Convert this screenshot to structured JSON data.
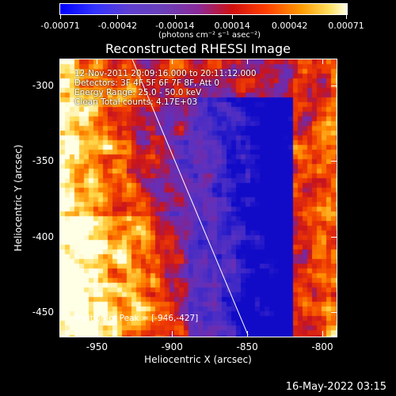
{
  "colorbar": {
    "ticks": [
      "-0.00071",
      "-0.00042",
      "-0.00014",
      "0.00014",
      "0.00042",
      "0.00071"
    ],
    "units": "(photons cm⁻² s⁻¹ asec⁻²)"
  },
  "chart_data": {
    "type": "heatmap",
    "title": "Reconstructed RHESSI Image",
    "xlabel": "Heliocentric X (arcsec)",
    "ylabel": "Heliocentric Y (arcsec)",
    "xlim": [
      -975,
      -790
    ],
    "ylim": [
      -467,
      -282
    ],
    "x_ticks": [
      "-950",
      "-900",
      "-850",
      "-800"
    ],
    "y_ticks": [
      "-300",
      "-350",
      "-400",
      "-450"
    ],
    "x_tick_values": [
      -950,
      -900,
      -850,
      -800
    ],
    "y_tick_values": [
      -300,
      -350,
      -400,
      -450
    ],
    "limb_line": [
      [
        -927,
        -282
      ],
      [
        -850,
        -465
      ]
    ],
    "peak_marker": [
      -946,
      -427
    ],
    "colormap": [
      "#0000ff",
      "#5f3fd0",
      "#8a2a9a",
      "#d01010",
      "#ff9a00",
      "#ffffe8"
    ]
  },
  "annotations": {
    "line1": "12-Nov-2011 20:09:16.000 to 20:11:12.000",
    "line2": "Detectors: 3F 4F 5F 6F 7F 8F, Att 0",
    "line3": "Energy Range: 25.0 - 50.0 keV",
    "line4": "Clean     Total counts: 4.17E+03",
    "peak": "Position of Peak = [-946,-427]"
  },
  "footer": "16-May-2022 03:15"
}
